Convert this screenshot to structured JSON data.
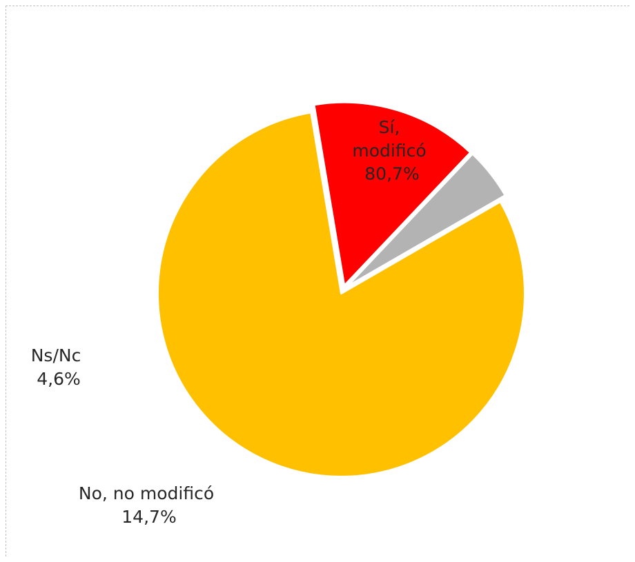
{
  "chart_data": {
    "type": "pie",
    "title": "",
    "slices": [
      {
        "label_lines": [
          "Sí,",
          "modificó"
        ],
        "value_label": "80,7%",
        "value": 80.7,
        "color": "#FFC000"
      },
      {
        "label_lines": [
          "No, no modificó"
        ],
        "value_label": "14,7%",
        "value": 14.7,
        "color": "#FF0000"
      },
      {
        "label_lines": [
          "Ns/Nc"
        ],
        "value_label": "4,6%",
        "value": 4.6,
        "color": "#B3B3B3"
      }
    ],
    "legend": "none",
    "start_angle_deg": 60,
    "direction": "clockwise",
    "exploded": true
  }
}
